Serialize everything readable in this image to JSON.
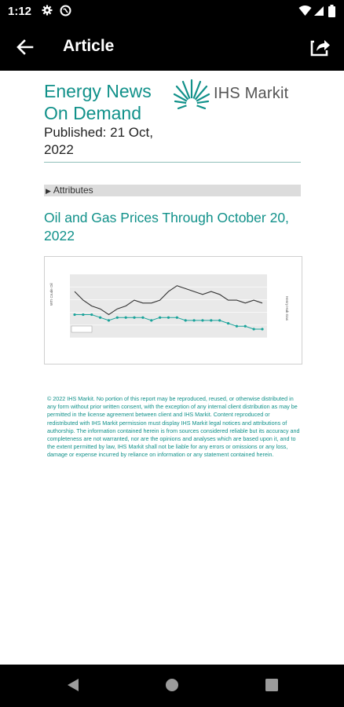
{
  "status_bar": {
    "time": "1:12"
  },
  "app_bar": {
    "title": "Article"
  },
  "article": {
    "doc_title": "Energy News On Demand",
    "published": "Published: 21 Oct, 2022",
    "logo_text": "IHS Markit",
    "attributes_label": "Attributes",
    "section_title": "Oil and Gas Prices Through October 20, 2022",
    "footer": "© 2022 IHS Markit. No portion of this report may be reproduced, reused, or otherwise distributed in any form without prior written consent, with the exception of any internal client distribution as may be permitted in the license agreement between client and IHS Markit. Content reproduced or redistributed with IHS Markit permission must display IHS Markit legal notices and attributions of authorship. The information contained herein is from sources considered reliable but its accuracy and completeness are not warranted, nor are the opinions and analyses which are based upon it, and to the extent permitted by law, IHS Markit shall not be liable for any errors or omissions or any loss, damage or expense incurred by reliance on information or any statement contained herein."
  },
  "chart_data": {
    "type": "line",
    "title": "",
    "ylabel": "WTI Crude Oil",
    "y2label": "Henry Hub Gas",
    "series": [
      {
        "values": [
          92,
          89,
          87,
          86,
          84,
          86,
          87,
          89,
          88,
          88,
          89,
          92,
          94,
          93,
          92,
          91,
          92,
          91,
          89,
          89,
          88,
          89,
          88
        ]
      },
      {
        "values": [
          84,
          84,
          84,
          83,
          82,
          83,
          83,
          83,
          83,
          82,
          83,
          83,
          83,
          82,
          82,
          82,
          82,
          82,
          81,
          80,
          80,
          79,
          79
        ]
      }
    ],
    "colors": {
      "line1": "#333333",
      "line2": "#1aa39a"
    },
    "grid": true
  }
}
